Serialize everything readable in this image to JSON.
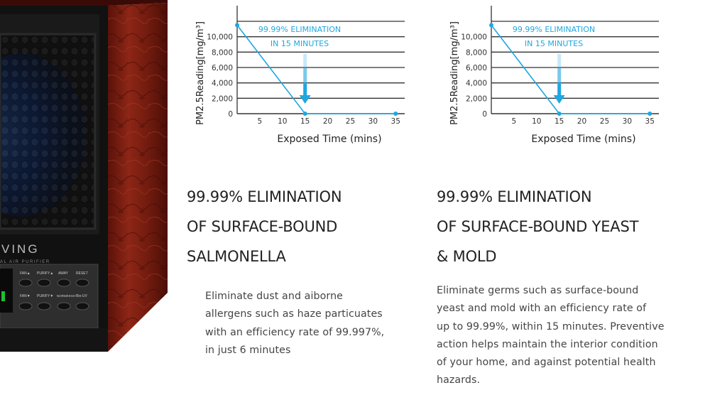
{
  "device": {
    "brand_partial": "VING",
    "subtitle_partial": "AL AIR PURIFIER",
    "buttons_row1": [
      "FAN▲",
      "PURIFY▲",
      "AWAY",
      "RESET"
    ],
    "buttons_row2": [
      "FAN▼",
      "PURIFY▼",
      "NORM/HIGH",
      "Bio-UV"
    ]
  },
  "charts": [
    {
      "ylabel": "PM2.5Reading[mg/m³]",
      "xlabel": "Exposed Time (mins)",
      "annotation_line1": "99.99% ELIMINATION",
      "annotation_line2": "IN 15 MINUTES",
      "yticks": [
        "10,000",
        "8,000",
        "6,000",
        "4,000",
        "2,000",
        "0"
      ],
      "xticks": [
        "5",
        "10",
        "15",
        "20",
        "25",
        "30",
        "35"
      ]
    },
    {
      "ylabel": "PM2.5Reading[mg/m³]",
      "xlabel": "Exposed Time (mins)",
      "annotation_line1": "99.99% ELIMINATION",
      "annotation_line2": "IN 15 MINUTES",
      "yticks": [
        "10,000",
        "8,000",
        "6,000",
        "4,000",
        "2,000",
        "0"
      ],
      "xticks": [
        "5",
        "10",
        "15",
        "20",
        "25",
        "30",
        "35"
      ]
    }
  ],
  "chart_data": [
    {
      "type": "line",
      "x": [
        0,
        15,
        35
      ],
      "y": [
        11500,
        0,
        0
      ],
      "xlim": [
        0,
        37
      ],
      "ylim": [
        0,
        12000
      ],
      "grid": true,
      "color": "#1ea7e1"
    },
    {
      "type": "line",
      "x": [
        0,
        15,
        35
      ],
      "y": [
        11500,
        0,
        0
      ],
      "xlim": [
        0,
        37
      ],
      "ylim": [
        0,
        12000
      ],
      "grid": true,
      "color": "#1ea7e1"
    }
  ],
  "features": [
    {
      "heading_lines": [
        "99.99% ELIMINATION",
        "OF SURFACE-BOUND",
        "SALMONELLA"
      ],
      "desc_lines": [
        "Eliminate dust and aiborne",
        "allergens such as haze particuates",
        "with an efficiency rate of 99.997%,",
        "in just 6 minutes"
      ]
    },
    {
      "heading_lines": [
        "99.99% ELIMINATION",
        "OF SURFACE-BOUND YEAST",
        "& MOLD"
      ],
      "desc_lines": [
        "Eliminate germs such as surface-bound",
        "yeast and mold with an efficiency rate of",
        "up to 99.99%, within 15 minutes. Preventive",
        "action helps maintain the interior condition",
        "of your home, and against potential health",
        "hazards."
      ]
    }
  ],
  "colors": {
    "accent": "#1ea7e1",
    "grid": "#333333",
    "wood": "#7a1f12"
  }
}
